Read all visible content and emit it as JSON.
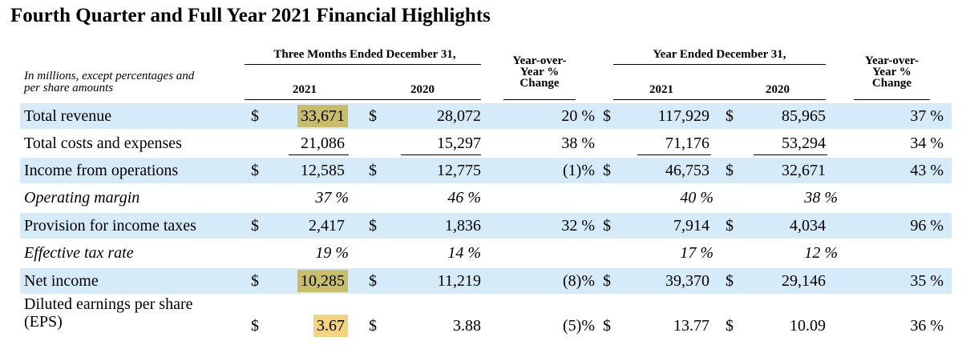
{
  "title": "Fourth Quarter and Full Year 2021 Financial Highlights",
  "note": [
    "In millions, except percentages and",
    "per share amounts"
  ],
  "groups": {
    "three_months": "Three Months Ended December 31,",
    "year": "Year Ended December 31,"
  },
  "years": {
    "current": "2021",
    "prior": "2020"
  },
  "yoy_header": [
    "Year-over-",
    "Year %",
    "Change"
  ],
  "rows": [
    {
      "label": "Total revenue",
      "italic": false,
      "shaded": true,
      "q_cur_dollar": "$",
      "q_cur": "33,671",
      "q_cur_hl": "olive",
      "q_prior_dollar": "$",
      "q_prior": "28,072",
      "q_yoy": "20 %",
      "y_cur_dollar": "$",
      "y_cur": "117,929",
      "y_prior_dollar": "$",
      "y_prior": "85,965",
      "y_yoy": "37 %"
    },
    {
      "label": "Total costs and expenses",
      "italic": false,
      "shaded": false,
      "underline": true,
      "q_cur": "21,086",
      "q_prior": "15,297",
      "q_yoy": "38 %",
      "y_cur": "71,176",
      "y_prior": "53,294",
      "y_yoy": "34 %"
    },
    {
      "label": "Income from operations",
      "italic": false,
      "shaded": true,
      "q_cur_dollar": "$",
      "q_cur": "12,585",
      "q_prior_dollar": "$",
      "q_prior": "12,775",
      "q_yoy": "(1)%",
      "y_cur_dollar": "$",
      "y_cur": "46,753",
      "y_prior_dollar": "$",
      "y_prior": "32,671",
      "y_yoy": "43 %"
    },
    {
      "label": "Operating margin",
      "italic": true,
      "shaded": false,
      "q_cur": "37 %",
      "q_prior": "46 %",
      "y_cur": "40 %",
      "y_prior": "38 %"
    },
    {
      "label": "Provision for income taxes",
      "italic": false,
      "shaded": true,
      "q_cur_dollar": "$",
      "q_cur": "2,417",
      "q_prior_dollar": "$",
      "q_prior": "1,836",
      "q_yoy": "32 %",
      "y_cur_dollar": "$",
      "y_cur": "7,914",
      "y_prior_dollar": "$",
      "y_prior": "4,034",
      "y_yoy": "96 %"
    },
    {
      "label": "Effective tax rate",
      "italic": true,
      "shaded": false,
      "q_cur": "19 %",
      "q_prior": "14 %",
      "y_cur": "17 %",
      "y_prior": "12 %"
    },
    {
      "label": "Net income",
      "italic": false,
      "shaded": true,
      "q_cur_dollar": "$",
      "q_cur": "10,285",
      "q_cur_hl": "olive",
      "q_prior_dollar": "$",
      "q_prior": "11,219",
      "q_yoy": "(8)%",
      "y_cur_dollar": "$",
      "y_cur": "39,370",
      "y_prior_dollar": "$",
      "y_prior": "29,146",
      "y_yoy": "35 %"
    },
    {
      "label": "Diluted earnings per share (EPS)",
      "label_lines": [
        "Diluted earnings per share",
        "(EPS)"
      ],
      "italic": false,
      "shaded": false,
      "q_cur_dollar": "$",
      "q_cur": "3.67",
      "q_cur_hl": "gold",
      "q_prior_dollar": "$",
      "q_prior": "3.88",
      "q_yoy": "(5)%",
      "y_cur_dollar": "$",
      "y_cur": "13.77",
      "y_prior_dollar": "$",
      "y_prior": "10.09",
      "y_yoy": "36 %"
    }
  ]
}
